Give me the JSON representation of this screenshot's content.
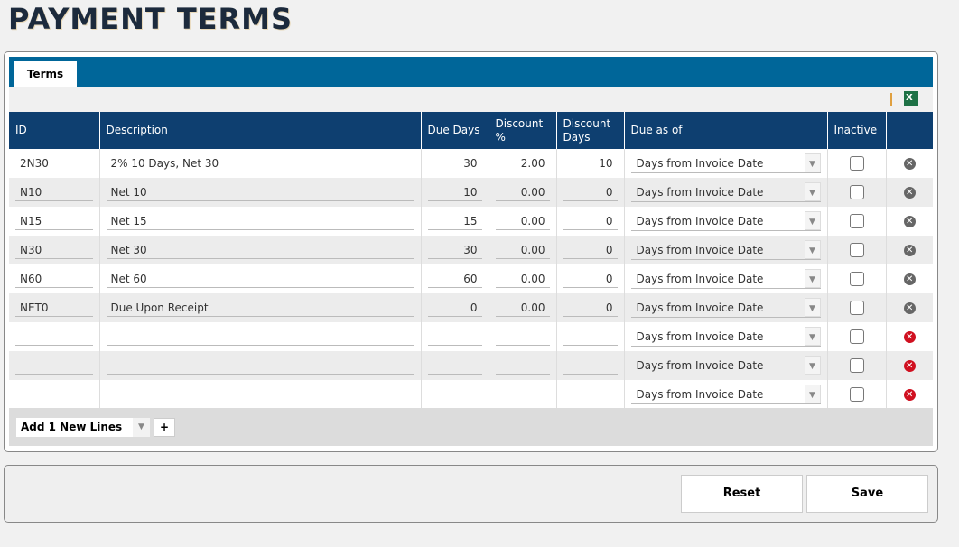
{
  "page": {
    "title": "PAYMENT TERMS"
  },
  "tabs": [
    {
      "label": "Terms"
    }
  ],
  "toolbar": {
    "excel_icon": "excel-export-icon"
  },
  "columns": [
    "ID",
    "Description",
    "Due Days",
    "Discount %",
    "Discount Days",
    "Due as of",
    "Inactive",
    ""
  ],
  "rows": [
    {
      "id": "2N30",
      "description": "2% 10 Days, Net 30",
      "due_days": "30",
      "discount_pct": "2.00",
      "discount_days": "10",
      "due_as_of": "Days from Invoice Date",
      "inactive": false
    },
    {
      "id": "N10",
      "description": "Net 10",
      "due_days": "10",
      "discount_pct": "0.00",
      "discount_days": "0",
      "due_as_of": "Days from Invoice Date",
      "inactive": false
    },
    {
      "id": "N15",
      "description": "Net 15",
      "due_days": "15",
      "discount_pct": "0.00",
      "discount_days": "0",
      "due_as_of": "Days from Invoice Date",
      "inactive": false
    },
    {
      "id": "N30",
      "description": "Net 30",
      "due_days": "30",
      "discount_pct": "0.00",
      "discount_days": "0",
      "due_as_of": "Days from Invoice Date",
      "inactive": false
    },
    {
      "id": "N60",
      "description": "Net 60",
      "due_days": "60",
      "discount_pct": "0.00",
      "discount_days": "0",
      "due_as_of": "Days from Invoice Date",
      "inactive": false
    },
    {
      "id": "NET0",
      "description": "Due Upon Receipt",
      "due_days": "0",
      "discount_pct": "0.00",
      "discount_days": "0",
      "due_as_of": "Days from Invoice Date",
      "inactive": false
    },
    {
      "id": "",
      "description": "",
      "due_days": "",
      "discount_pct": "",
      "discount_days": "",
      "due_as_of": "Days from Invoice Date",
      "inactive": false,
      "new": true
    },
    {
      "id": "",
      "description": "",
      "due_days": "",
      "discount_pct": "",
      "discount_days": "",
      "due_as_of": "Days from Invoice Date",
      "inactive": false,
      "new": true
    },
    {
      "id": "",
      "description": "",
      "due_days": "",
      "discount_pct": "",
      "discount_days": "",
      "due_as_of": "Days from Invoice Date",
      "inactive": false,
      "new": true
    }
  ],
  "footer": {
    "add_lines": "Add 1 New Lines",
    "plus": "+"
  },
  "buttons": {
    "reset": "Reset",
    "save": "Save"
  },
  "colors": {
    "tab_bar": "#006699",
    "header": "#0e3f70",
    "delete_new": "#d01020"
  }
}
